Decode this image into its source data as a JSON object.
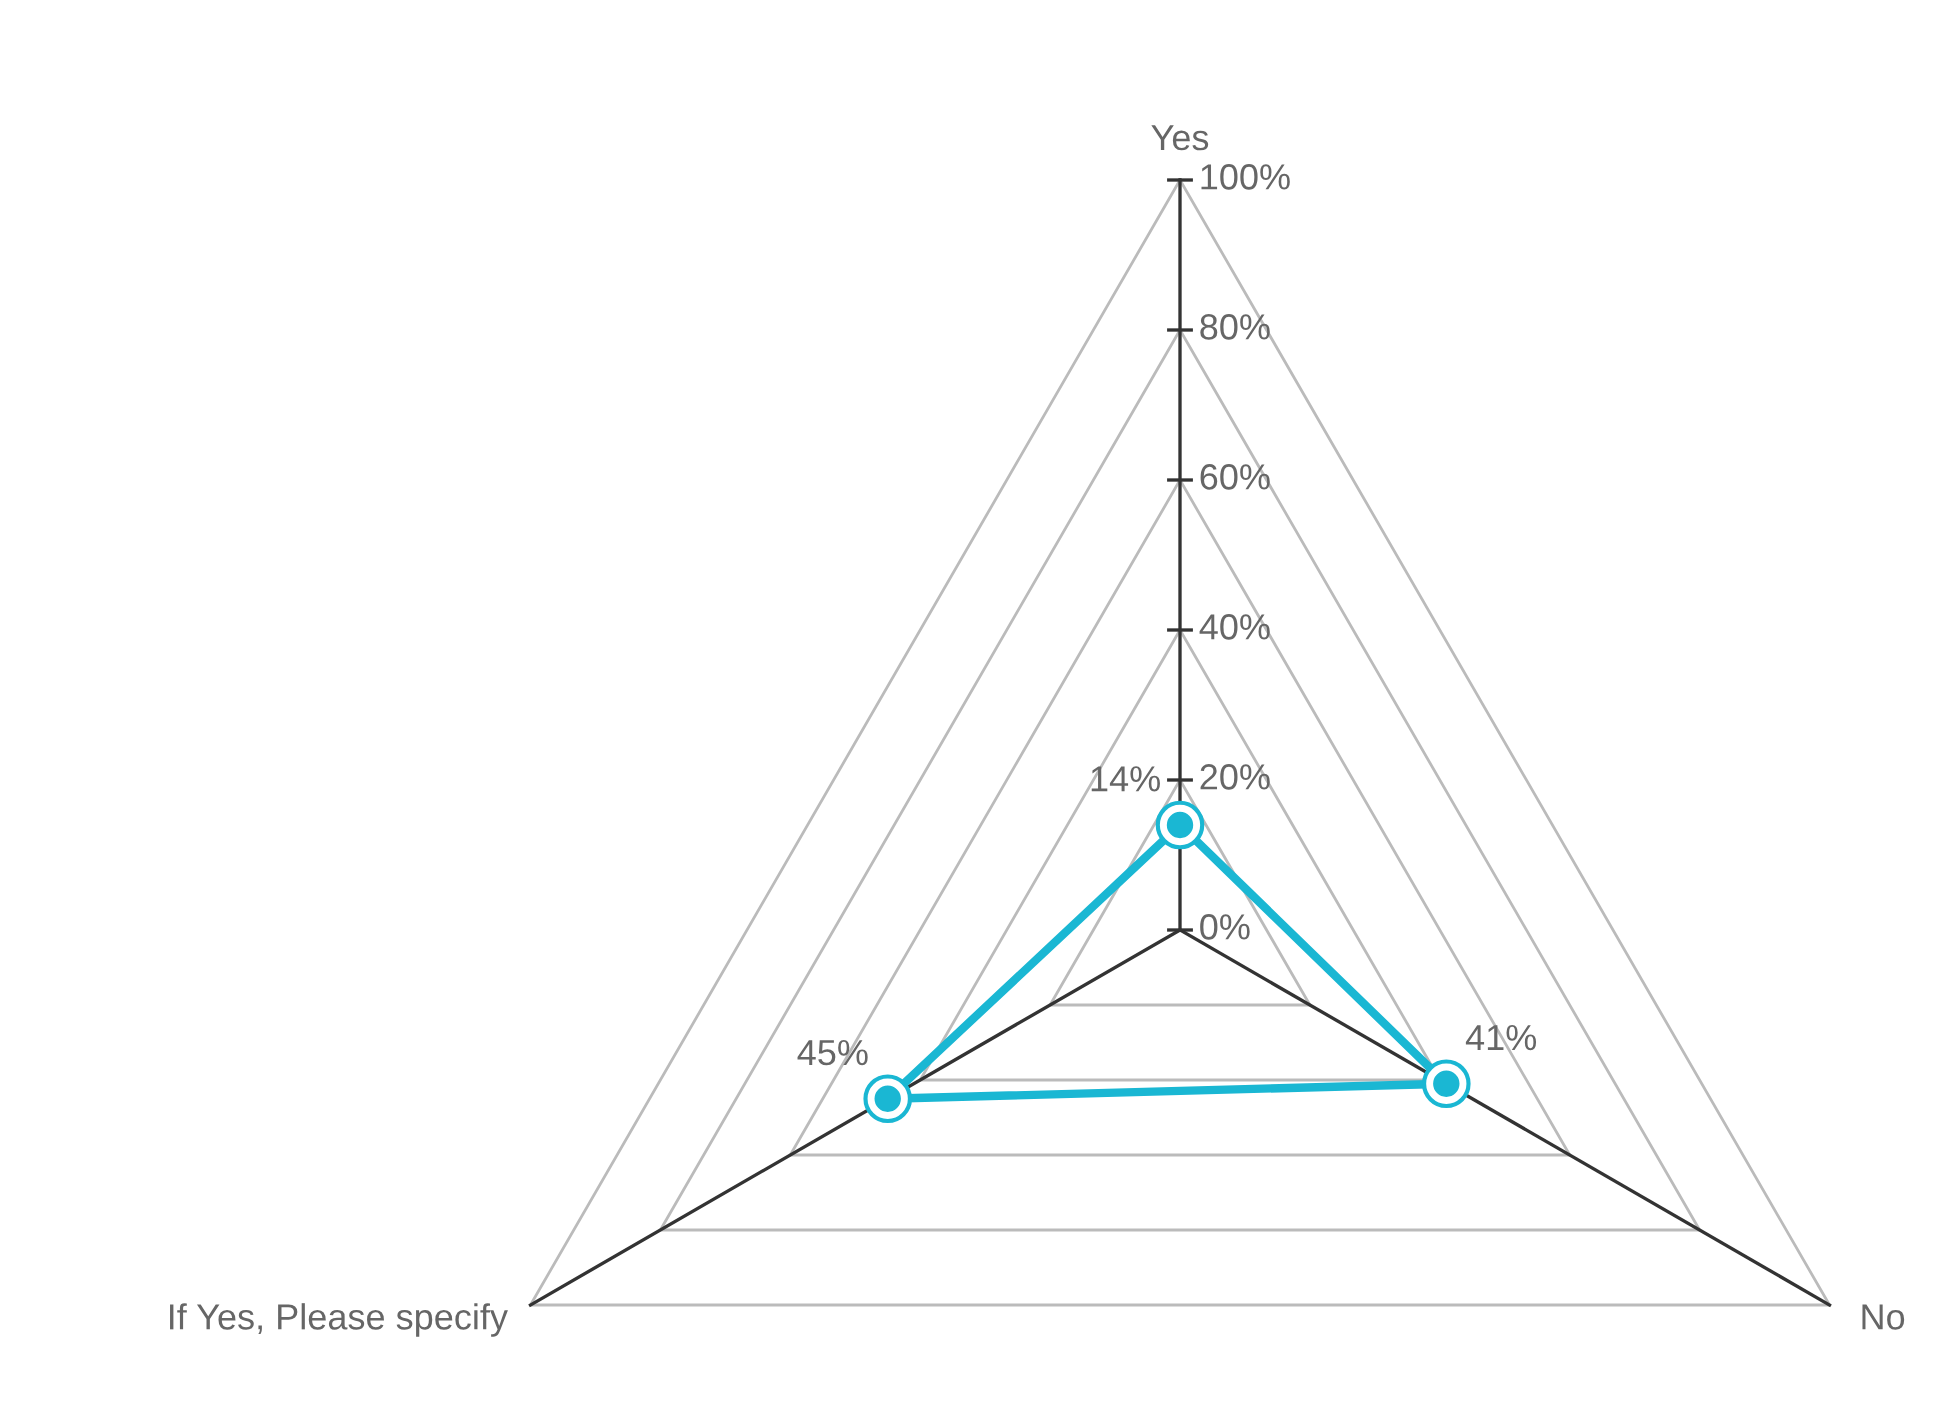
{
  "chart_data": {
    "type": "radar",
    "categories": [
      "Yes",
      "No",
      "If Yes, Please specify"
    ],
    "series": [
      {
        "color": "#1ab7d3",
        "values": [
          14,
          41,
          45
        ],
        "value_labels": [
          "14%",
          "41%",
          "45%"
        ]
      }
    ],
    "ylim": [
      0,
      100
    ],
    "yticks": [
      {
        "value": 0,
        "label": "0%"
      },
      {
        "value": 20,
        "label": "20%"
      },
      {
        "value": 40,
        "label": "40%"
      },
      {
        "value": 60,
        "label": "60%"
      },
      {
        "value": 80,
        "label": "80%"
      },
      {
        "value": 100,
        "label": "100%"
      }
    ],
    "grid": true,
    "marker": "circle",
    "line_style": "solid"
  }
}
